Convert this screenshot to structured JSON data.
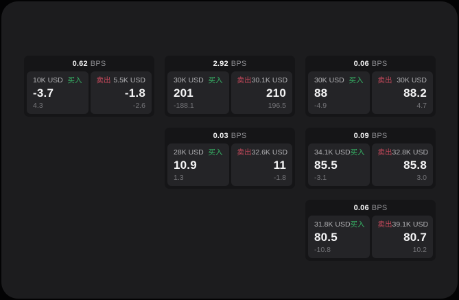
{
  "colors": {
    "outer_bg": "#030304",
    "page_bg": "#1c1c1e",
    "card_bg": "#151517",
    "panel_bg": "#242427",
    "buy_accent": "#36b366",
    "sell_accent": "#c2485a",
    "primary_text": "#f5f5f6",
    "muted_text": "#757579"
  },
  "labels": {
    "buy": "买入",
    "sell": "卖出",
    "bps_unit": "BPS"
  },
  "cards": [
    {
      "bps": "0.62",
      "buy": {
        "amount": "10K USD",
        "price": "-3.7",
        "delta": "4.3"
      },
      "sell": {
        "amount": "5.5K USD",
        "price": "-1.8",
        "delta": "-2.6"
      }
    },
    {
      "bps": "2.92",
      "buy": {
        "amount": "30K USD",
        "price": "201",
        "delta": "-188.1"
      },
      "sell": {
        "amount": "30.1K USD",
        "price": "210",
        "delta": "196.5"
      }
    },
    {
      "bps": "0.06",
      "buy": {
        "amount": "30K USD",
        "price": "88",
        "delta": "-4.9"
      },
      "sell": {
        "amount": "30K USD",
        "price": "88.2",
        "delta": "4.7"
      }
    },
    {
      "bps": "0.03",
      "buy": {
        "amount": "28K USD",
        "price": "10.9",
        "delta": "1.3"
      },
      "sell": {
        "amount": "32.6K USD",
        "price": "11",
        "delta": "-1.8"
      }
    },
    {
      "bps": "0.09",
      "buy": {
        "amount": "34.1K USD",
        "price": "85.5",
        "delta": "-3.1"
      },
      "sell": {
        "amount": "32.8K USD",
        "price": "85.8",
        "delta": "3.0"
      }
    },
    {
      "bps": "0.06",
      "buy": {
        "amount": "31.8K USD",
        "price": "80.5",
        "delta": "-10.8"
      },
      "sell": {
        "amount": "39.1K USD",
        "price": "80.7",
        "delta": "10.2"
      }
    }
  ]
}
